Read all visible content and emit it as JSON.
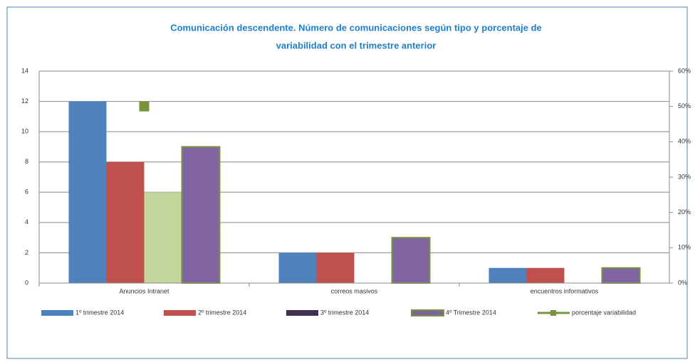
{
  "chart_data": {
    "type": "bar",
    "title": [
      "Comunicación descendente. Número de comunicaciones según tipo y porcentaje de",
      "variabilidad con el trimestre anterior"
    ],
    "categories": [
      "Anuncios Intranet",
      "correos masivos",
      "encuentros informativos"
    ],
    "series": [
      {
        "name": "1º trimestre 2014",
        "color": "#4f81bd",
        "values": [
          12,
          2,
          1
        ]
      },
      {
        "name": "2º trimestre 2014",
        "color": "#c0504d",
        "values": [
          8,
          2,
          1
        ]
      },
      {
        "name": "3º trimestre 2014",
        "color": "#c3d69b",
        "legend_color": "#403152",
        "values": [
          6,
          0,
          0
        ]
      },
      {
        "name": "4º Trimestre 2014",
        "color": "#8064a2",
        "stroke": "#77933c",
        "values": [
          9,
          3,
          1
        ]
      },
      {
        "name": "porcentaje variabilidad",
        "color": "#77933c",
        "type": "marker",
        "axis": "y2",
        "values": [
          50,
          null,
          null
        ]
      }
    ],
    "ylim": [
      0,
      14
    ],
    "yticks": [
      0,
      2,
      4,
      6,
      8,
      10,
      12,
      14
    ],
    "y2lim": [
      0,
      60
    ],
    "y2ticks": [
      {
        "value": 0,
        "label": "0%"
      },
      {
        "value": 10,
        "label": "10%"
      },
      {
        "value": 20,
        "label": "20%"
      },
      {
        "value": 30,
        "label": "30%"
      },
      {
        "value": 40,
        "label": "40%"
      },
      {
        "value": 50,
        "label": "50%"
      },
      {
        "value": 60,
        "label": "60%"
      }
    ],
    "grid": true,
    "legend": "bottom"
  }
}
